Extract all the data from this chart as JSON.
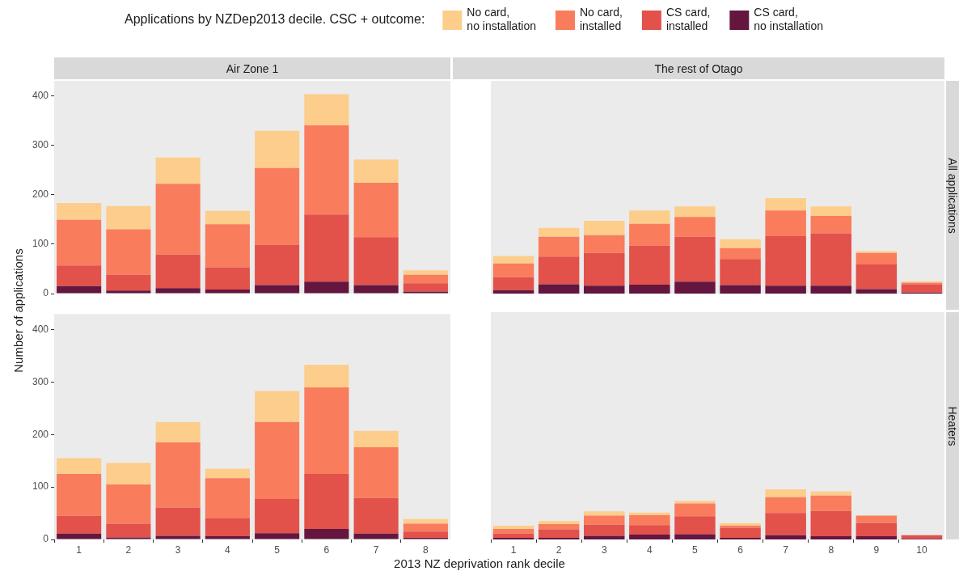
{
  "chart_data": [
    {
      "type": "bar",
      "title": "Air Zone 1",
      "ylabel": "Number of applications",
      "legend": "top",
      "legend_title": "Applications by NZDep2013 decile. CSC + outcome:",
      "categories": [
        "1",
        "2",
        "3",
        "4",
        "5",
        "6",
        "7",
        "8"
      ],
      "stacked": true,
      "ylim": [
        0,
        430
      ],
      "yticks": [
        0,
        100,
        200,
        300,
        400
      ],
      "tick_labels": "y",
      "series": [
        {
          "name": "CS card,\nno installation",
          "color": "#65163f",
          "values": [
            15,
            6,
            11,
            8,
            17,
            24,
            17,
            4
          ]
        },
        {
          "name": "CS card,\ninstalled",
          "color": "#e2514a",
          "values": [
            42,
            32,
            68,
            45,
            82,
            136,
            97,
            17
          ]
        },
        {
          "name": "No card,\ninstalled",
          "color": "#f97c5d",
          "values": [
            92,
            92,
            143,
            87,
            155,
            180,
            110,
            17
          ]
        },
        {
          "name": "No card,\nno installation",
          "color": "#fdcd8c",
          "values": [
            34,
            47,
            53,
            27,
            75,
            63,
            47,
            9
          ]
        }
      ]
    },
    {
      "type": "bar",
      "title": "The rest of Otago",
      "subtitle": "All applications",
      "categories": [
        "1",
        "2",
        "3",
        "4",
        "5",
        "6",
        "7",
        "8",
        "9",
        "10"
      ],
      "stacked": true,
      "ylim": [
        0,
        430
      ],
      "yticks": [
        0,
        100,
        200,
        300,
        400
      ],
      "tick_labels": false,
      "series": [
        {
          "color": "#65163f",
          "values": [
            7,
            19,
            16,
            18,
            24,
            17,
            16,
            16,
            9,
            2
          ]
        },
        {
          "color": "#e2514a",
          "values": [
            26,
            56,
            66,
            79,
            91,
            53,
            100,
            106,
            50,
            17
          ]
        },
        {
          "color": "#f97c5d",
          "values": [
            28,
            40,
            36,
            44,
            40,
            22,
            52,
            35,
            23,
            3
          ]
        },
        {
          "color": "#fdcd8c",
          "values": [
            15,
            18,
            29,
            27,
            21,
            18,
            25,
            19,
            4,
            3
          ]
        }
      ]
    },
    {
      "type": "bar",
      "xlabel": "2013 NZ deprivation rank decile",
      "categories": [
        "1",
        "2",
        "3",
        "4",
        "5",
        "6",
        "7",
        "8"
      ],
      "stacked": true,
      "ylim": [
        0,
        430
      ],
      "yticks": [
        0,
        100,
        200,
        300,
        400
      ],
      "series": [
        {
          "color": "#65163f",
          "values": [
            11,
            4,
            7,
            6,
            12,
            20,
            11,
            3
          ]
        },
        {
          "color": "#e2514a",
          "values": [
            34,
            26,
            54,
            35,
            65,
            105,
            68,
            12
          ]
        },
        {
          "color": "#f97c5d",
          "values": [
            80,
            75,
            124,
            76,
            147,
            165,
            97,
            15
          ]
        },
        {
          "color": "#fdcd8c",
          "values": [
            30,
            41,
            39,
            18,
            59,
            43,
            31,
            9
          ]
        }
      ]
    },
    {
      "type": "bar",
      "subtitle": "Heaters",
      "categories": [
        "1",
        "2",
        "3",
        "4",
        "5",
        "6",
        "7",
        "8",
        "9",
        "10"
      ],
      "stacked": true,
      "ylim": [
        0,
        430
      ],
      "yticks": [
        0,
        100,
        200,
        300,
        400
      ],
      "tick_labels": "x",
      "series": [
        {
          "color": "#65163f",
          "values": [
            3,
            3,
            7,
            9,
            10,
            3,
            8,
            6,
            6,
            1
          ]
        },
        {
          "color": "#e2514a",
          "values": [
            8,
            16,
            21,
            18,
            34,
            19,
            42,
            48,
            25,
            7
          ]
        },
        {
          "color": "#f97c5d",
          "values": [
            9,
            10,
            17,
            19,
            24,
            4,
            30,
            29,
            14,
            0
          ]
        },
        {
          "color": "#fdcd8c",
          "values": [
            6,
            6,
            8,
            5,
            5,
            5,
            15,
            8,
            0,
            0
          ]
        }
      ]
    }
  ]
}
